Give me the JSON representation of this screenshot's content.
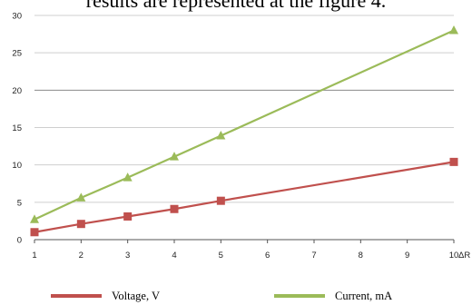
{
  "header": {
    "text": "results are represented at the figure 4."
  },
  "chart_data": {
    "type": "line",
    "x": [
      1,
      2,
      3,
      4,
      5,
      10
    ],
    "xticks": [
      1,
      2,
      3,
      4,
      5,
      6,
      7,
      8,
      9,
      10
    ],
    "yticks": [
      0,
      5,
      10,
      15,
      20,
      25,
      30
    ],
    "xlim": [
      1,
      10
    ],
    "ylim": [
      0,
      30
    ],
    "xlabel": "ΔR",
    "ylabel": "",
    "grid": "horizontal",
    "legend_position": "bottom",
    "series": [
      {
        "name": "Voltage, V",
        "values": [
          1.0,
          2.1,
          3.1,
          4.1,
          5.2,
          10.4
        ],
        "color": "#c0504d",
        "marker": "square"
      },
      {
        "name": "Current, mA",
        "values": [
          2.7,
          5.6,
          8.3,
          11.1,
          13.9,
          28.0
        ],
        "color": "#9bbb59",
        "marker": "triangle"
      }
    ]
  }
}
